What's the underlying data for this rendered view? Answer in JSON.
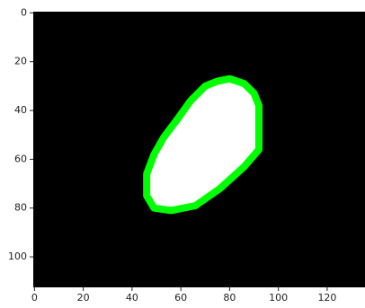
{
  "chart_data": {
    "type": "image",
    "xlim": [
      -0.5,
      135.5
    ],
    "ylim": [
      112.5,
      -0.5
    ],
    "xticks": [
      0,
      20,
      40,
      60,
      80,
      100,
      120
    ],
    "yticks": [
      0,
      20,
      40,
      60,
      80,
      100
    ],
    "grid": false
  }
}
